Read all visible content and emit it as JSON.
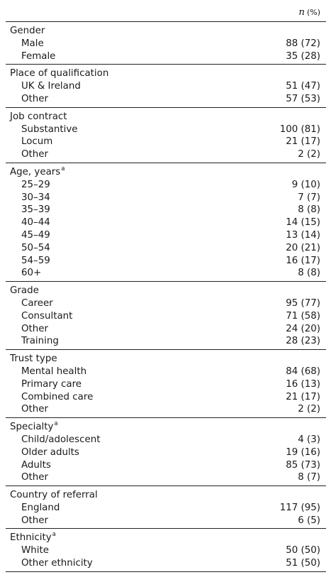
{
  "header": {
    "n": "n",
    "pct": "(%)"
  },
  "sections": [
    {
      "title": "Gender",
      "sup": "",
      "rows": [
        {
          "label": "Male",
          "value": "88 (72)"
        },
        {
          "label": "Female",
          "value": "35 (28)"
        }
      ]
    },
    {
      "title": "Place of qualification",
      "sup": "",
      "rows": [
        {
          "label": "UK & Ireland",
          "value": "51 (47)"
        },
        {
          "label": "Other",
          "value": "57 (53)"
        }
      ]
    },
    {
      "title": "Job contract",
      "sup": "",
      "rows": [
        {
          "label": "Substantive",
          "value": "100 (81)"
        },
        {
          "label": "Locum",
          "value": "21 (17)"
        },
        {
          "label": "Other",
          "value": "2 (2)"
        }
      ]
    },
    {
      "title": "Age, years",
      "sup": "a",
      "rows": [
        {
          "label": "25–29",
          "value": "9 (10)"
        },
        {
          "label": "30–34",
          "value": "7 (7)"
        },
        {
          "label": "35–39",
          "value": "8 (8)"
        },
        {
          "label": "40–44",
          "value": "14 (15)"
        },
        {
          "label": "45–49",
          "value": "13 (14)"
        },
        {
          "label": "50–54",
          "value": "20 (21)"
        },
        {
          "label": "54–59",
          "value": "16 (17)"
        },
        {
          "label": "60+",
          "value": "8 (8)"
        }
      ]
    },
    {
      "title": "Grade",
      "sup": "",
      "rows": [
        {
          "label": "Career",
          "value": "95 (77)"
        },
        {
          "label": "Consultant",
          "value": "71 (58)"
        },
        {
          "label": "Other",
          "value": "24 (20)"
        },
        {
          "label": "Training",
          "value": "28 (23)"
        }
      ]
    },
    {
      "title": "Trust type",
      "sup": "",
      "rows": [
        {
          "label": "Mental health",
          "value": "84 (68)"
        },
        {
          "label": "Primary care",
          "value": "16 (13)"
        },
        {
          "label": "Combined care",
          "value": "21 (17)"
        },
        {
          "label": "Other",
          "value": "2 (2)"
        }
      ]
    },
    {
      "title": "Specialty",
      "sup": "a",
      "rows": [
        {
          "label": "Child/adolescent",
          "value": "4 (3)"
        },
        {
          "label": "Older adults",
          "value": "19 (16)"
        },
        {
          "label": "Adults",
          "value": "85 (73)"
        },
        {
          "label": "Other",
          "value": "8 (7)"
        }
      ]
    },
    {
      "title": "Country of referral",
      "sup": "",
      "rows": [
        {
          "label": "England",
          "value": "117 (95)"
        },
        {
          "label": "Other",
          "value": "6 (5)"
        }
      ]
    },
    {
      "title": "Ethnicity",
      "sup": "a",
      "rows": [
        {
          "label": "White",
          "value": "50 (50)"
        },
        {
          "label": "Other ethnicity",
          "value": "51 (50)"
        }
      ]
    }
  ]
}
